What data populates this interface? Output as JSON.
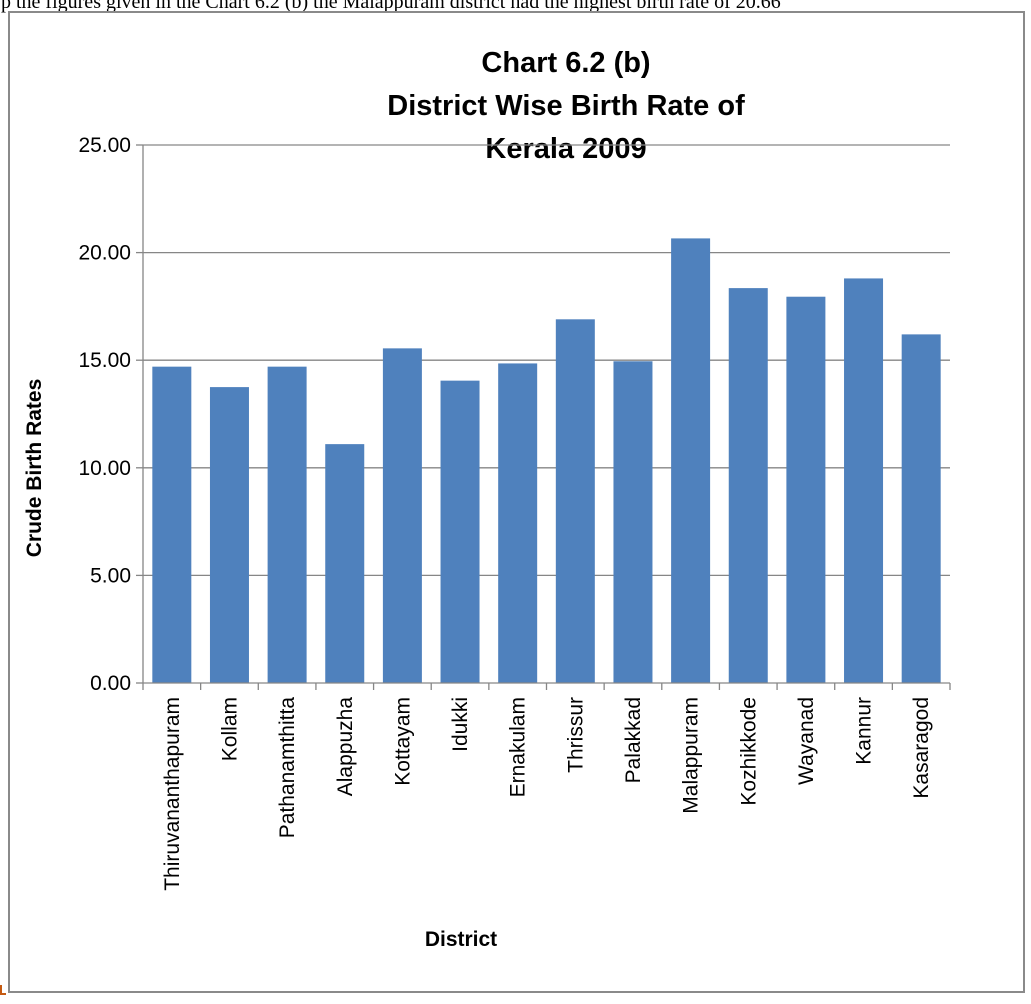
{
  "caption_fragment": "p the figures given in the Chart 6.2 (b) the Malappuram district had the highest birth rate of 20.66",
  "chart_data": {
    "type": "bar",
    "title": [
      "Chart 6.2 (b)",
      "District Wise Birth Rate of",
      "Kerala 2009"
    ],
    "xlabel": "District",
    "ylabel": "Crude Birth Rates",
    "ylim": [
      0,
      25
    ],
    "yticks": [
      "0.00",
      "5.00",
      "10.00",
      "15.00",
      "20.00",
      "25.00"
    ],
    "grid": true,
    "legend": "none",
    "bar_color": "#4f81bd",
    "categories": [
      "Thiruvananthapuram",
      "Kollam",
      "Pathanamthitta",
      "Alappuzha",
      "Kottayam",
      "Idukki",
      "Ernakulam",
      "Thrissur",
      "Palakkad",
      "Malappuram",
      "Kozhikkode",
      "Wayanad",
      "Kannur",
      "Kasaragod"
    ],
    "values": [
      14.7,
      13.75,
      14.7,
      11.1,
      15.55,
      14.05,
      14.85,
      16.9,
      14.95,
      20.66,
      18.35,
      17.95,
      18.8,
      16.2
    ]
  }
}
